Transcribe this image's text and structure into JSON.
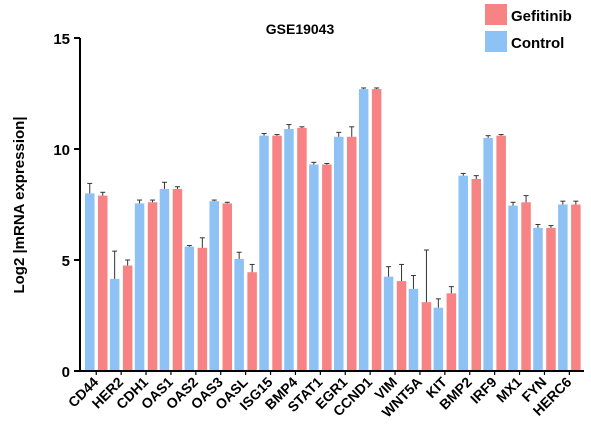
{
  "chart_data": {
    "type": "bar",
    "title": "GSE19043",
    "ylabel": "Log2 |mRNA expression|",
    "xlabel": "",
    "ylim": [
      0,
      15
    ],
    "yticks": [
      0,
      5,
      10,
      15
    ],
    "legend_position": "top-right",
    "categories": [
      "CD44",
      "HER2",
      "CDH1",
      "OAS1",
      "OAS2",
      "OAS3",
      "OASL",
      "ISG15",
      "BMP4",
      "STAT1",
      "EGR1",
      "CCND1",
      "VIM",
      "WNT5A",
      "KIT",
      "BMP2",
      "IRF9",
      "MX1",
      "FYN",
      "HERC6"
    ],
    "series": [
      {
        "name": "Control",
        "color": "#8ec2f5",
        "values": [
          8.0,
          4.15,
          7.55,
          8.2,
          5.6,
          7.65,
          5.05,
          10.6,
          10.9,
          9.3,
          10.55,
          12.7,
          4.25,
          3.7,
          2.85,
          8.8,
          10.5,
          7.45,
          6.45,
          7.5
        ],
        "errors": [
          0.45,
          1.25,
          0.15,
          0.3,
          0.05,
          0.05,
          0.3,
          0.1,
          0.2,
          0.1,
          0.2,
          0.05,
          0.45,
          0.6,
          0.4,
          0.1,
          0.1,
          0.15,
          0.15,
          0.15
        ]
      },
      {
        "name": "Gefitinib",
        "color": "#f88385",
        "values": [
          7.9,
          4.75,
          7.6,
          8.2,
          5.55,
          7.55,
          4.45,
          10.6,
          10.95,
          9.3,
          10.55,
          12.7,
          4.05,
          3.1,
          3.5,
          8.65,
          10.6,
          7.6,
          6.45,
          7.5
        ],
        "errors": [
          0.15,
          0.25,
          0.1,
          0.1,
          0.45,
          0.05,
          0.35,
          0.05,
          0.05,
          0.05,
          0.45,
          0.05,
          0.75,
          2.35,
          0.3,
          0.15,
          0.05,
          0.3,
          0.1,
          0.15
        ]
      }
    ]
  }
}
